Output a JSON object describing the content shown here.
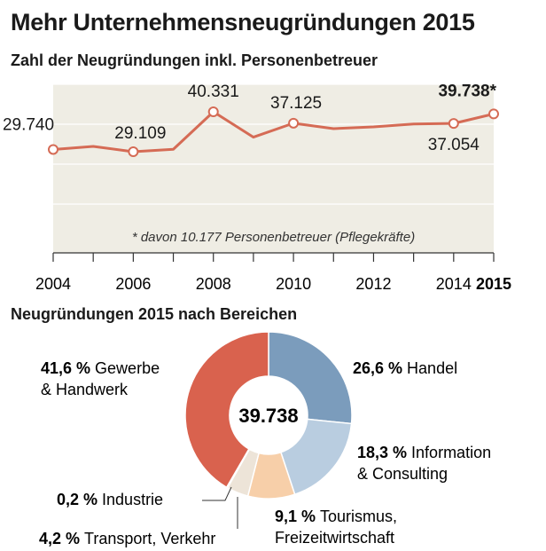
{
  "title": "Mehr Unternehmensneugründungen 2015",
  "subtitle": "Zahl der Neugründungen inkl. Personenbetreuer",
  "section2_title": "Neugründungen 2015 nach Bereichen",
  "colors": {
    "line": "#d56b55",
    "area": "#efede4",
    "gewerbe": "#d9624e",
    "handel": "#7b9cbc",
    "information": "#b9cde0",
    "tourismus": "#f7cfa9",
    "transport": "#ede4d8",
    "industrie": "#f5ede3"
  },
  "chart_data": [
    {
      "type": "line",
      "title": "Zahl der Neugründungen inkl. Personenbetreuer",
      "x": [
        2004,
        2005,
        2006,
        2007,
        2008,
        2009,
        2010,
        2011,
        2012,
        2013,
        2014,
        2015
      ],
      "values": [
        29740,
        30600,
        29109,
        29800,
        40331,
        33200,
        37125,
        35600,
        36100,
        36900,
        37054,
        39738
      ],
      "marked_years": [
        2004,
        2006,
        2008,
        2010,
        2014,
        2015
      ],
      "data_labels": [
        {
          "year": 2004,
          "text": "29.740"
        },
        {
          "year": 2006,
          "text": "29.109"
        },
        {
          "year": 2008,
          "text": "40.331"
        },
        {
          "year": 2010,
          "text": "37.125"
        },
        {
          "year": 2014,
          "text": "37.054"
        },
        {
          "year": 2015,
          "text": "39.738*"
        }
      ],
      "tick_labels": [
        "2004",
        "2006",
        "2008",
        "2010",
        "2012",
        "2014",
        "2015"
      ],
      "ylim": [
        0,
        45000
      ],
      "footnote": "* davon 10.177 Personenbetreuer (Pflegekräfte)"
    },
    {
      "type": "pie",
      "title": "Neugründungen 2015 nach Bereichen",
      "center_label": "39.738",
      "slices": [
        {
          "name": "Handel",
          "pct": 26.6,
          "pct_label": "26,6 %",
          "label": "Handel",
          "color_key": "handel"
        },
        {
          "name": "Information & Consulting",
          "pct": 18.3,
          "pct_label": "18,3 %",
          "label_lines": [
            "Information",
            "& Consulting"
          ],
          "color_key": "information"
        },
        {
          "name": "Tourismus, Freizeitwirtschaft",
          "pct": 9.1,
          "pct_label": "9,1 %",
          "label_lines": [
            "Tourismus,",
            "Freizeitwirtschaft"
          ],
          "color_key": "tourismus"
        },
        {
          "name": "Transport, Verkehr",
          "pct": 4.2,
          "pct_label": "4,2 %",
          "label": "Transport, Verkehr",
          "color_key": "transport"
        },
        {
          "name": "Industrie",
          "pct": 0.2,
          "pct_label": "0,2 %",
          "label": "Industrie",
          "color_key": "industrie"
        },
        {
          "name": "Gewerbe & Handwerk",
          "pct": 41.6,
          "pct_label": "41,6 %",
          "label_lines": [
            "Gewerbe",
            "& Handwerk"
          ],
          "color_key": "gewerbe"
        }
      ]
    }
  ]
}
